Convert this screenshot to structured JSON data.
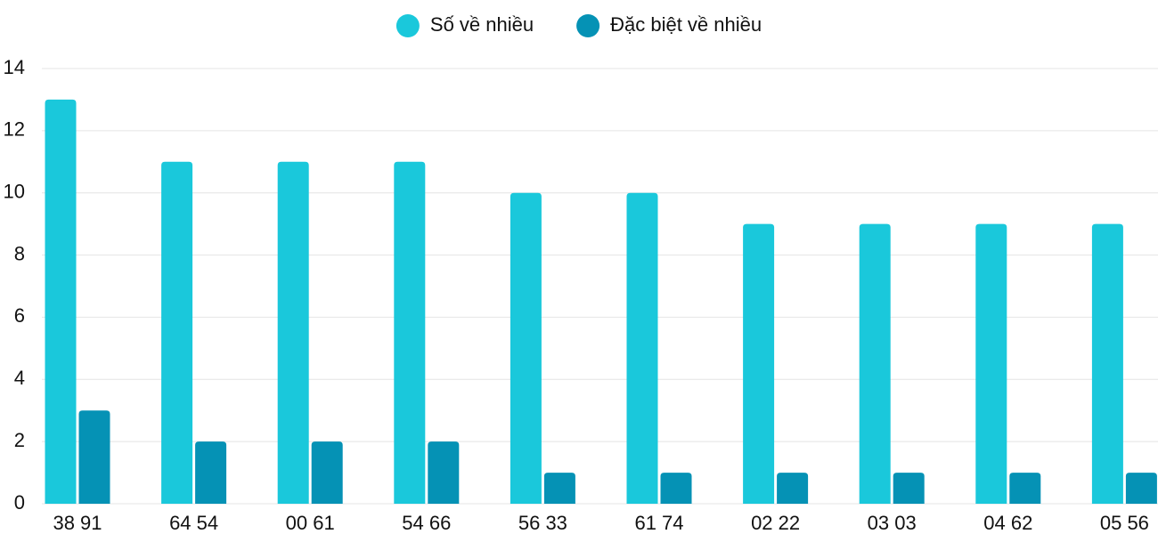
{
  "chart_data": {
    "type": "bar",
    "categories": [
      "38 91",
      "64 54",
      "00 61",
      "54 66",
      "56 33",
      "61 74",
      "02 22",
      "03 03",
      "04 62",
      "05 56"
    ],
    "series": [
      {
        "name": "Số về nhiều",
        "color": "#1ac8db",
        "values": [
          13,
          11,
          11,
          11,
          10,
          10,
          9,
          9,
          9,
          9
        ]
      },
      {
        "name": "Đặc biệt về nhiều",
        "color": "#0592b5",
        "values": [
          3,
          2,
          2,
          2,
          1,
          1,
          1,
          1,
          1,
          1
        ]
      }
    ],
    "ylim": [
      0,
      14
    ],
    "yticks": [
      0,
      2,
      4,
      6,
      8,
      10,
      12,
      14
    ],
    "grid": true,
    "legend": "top"
  }
}
